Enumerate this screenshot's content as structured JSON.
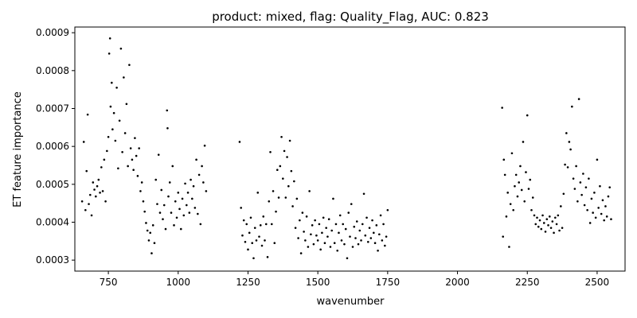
{
  "chart_data": {
    "type": "scatter",
    "title": "product: mixed, flag: Quality_Flag, AUC: 0.823",
    "xlabel": "wavenumber",
    "ylabel": "ET feature importance",
    "xlim": [
      630,
      2600
    ],
    "ylim": [
      0.000271,
      0.000915
    ],
    "xticks": [
      {
        "value": 750,
        "label": "750"
      },
      {
        "value": 1000,
        "label": "1000"
      },
      {
        "value": 1250,
        "label": "1250"
      },
      {
        "value": 1500,
        "label": "1500"
      },
      {
        "value": 1750,
        "label": "1750"
      },
      {
        "value": 2000,
        "label": "2000"
      },
      {
        "value": 2250,
        "label": "2250"
      },
      {
        "value": 2500,
        "label": "2500"
      }
    ],
    "yticks": [
      {
        "value": 0.0003,
        "label": "0.0003"
      },
      {
        "value": 0.0004,
        "label": "0.0004"
      },
      {
        "value": 0.0005,
        "label": "0.0005"
      },
      {
        "value": 0.0006,
        "label": "0.0006"
      },
      {
        "value": 0.0007,
        "label": "0.0007"
      },
      {
        "value": 0.0008,
        "label": "0.0008"
      },
      {
        "value": 0.0009,
        "label": "0.0009"
      }
    ],
    "grid": false,
    "marker_color": "#000000",
    "series": [
      {
        "points": [
          [
            656,
            0.000455
          ],
          [
            662,
            0.000612
          ],
          [
            668,
            0.000432
          ],
          [
            672,
            0.000535
          ],
          [
            676,
            0.000684
          ],
          [
            680,
            0.000448
          ],
          [
            685,
            0.000472
          ],
          [
            690,
            0.000418
          ],
          [
            695,
            0.000505
          ],
          [
            700,
            0.000486
          ],
          [
            705,
            0.000468
          ],
          [
            710,
            0.000495
          ],
          [
            715,
            0.000512
          ],
          [
            720,
            0.000478
          ],
          [
            725,
            0.000545
          ],
          [
            730,
            0.000482
          ],
          [
            735,
            0.000565
          ],
          [
            740,
            0.000455
          ],
          [
            745,
            0.000588
          ],
          [
            750,
            0.000625
          ],
          [
            753,
            0.000845
          ],
          [
            756,
            0.000885
          ],
          [
            758,
            0.000705
          ],
          [
            762,
            0.000768
          ],
          [
            765,
            0.000645
          ],
          [
            770,
            0.000688
          ],
          [
            775,
            0.000615
          ],
          [
            780,
            0.000755
          ],
          [
            785,
            0.000542
          ],
          [
            790,
            0.000668
          ],
          [
            795,
            0.000858
          ],
          [
            800,
            0.000585
          ],
          [
            805,
            0.000782
          ],
          [
            810,
            0.000635
          ],
          [
            815,
            0.000712
          ],
          [
            820,
            0.000548
          ],
          [
            825,
            0.000815
          ],
          [
            830,
            0.000595
          ],
          [
            835,
            0.000565
          ],
          [
            840,
            0.000538
          ],
          [
            845,
            0.000622
          ],
          [
            850,
            0.000575
          ],
          [
            855,
            0.000522
          ],
          [
            860,
            0.000595
          ],
          [
            865,
            0.000482
          ],
          [
            870,
            0.000505
          ],
          [
            875,
            0.000455
          ],
          [
            880,
            0.000428
          ],
          [
            885,
            0.000398
          ],
          [
            890,
            0.000378
          ],
          [
            895,
            0.000352
          ],
          [
            900,
            0.000372
          ],
          [
            905,
            0.000318
          ],
          [
            910,
            0.000392
          ],
          [
            915,
            0.000345
          ],
          [
            920,
            0.000512
          ],
          [
            925,
            0.000448
          ],
          [
            930,
            0.000578
          ],
          [
            935,
            0.000425
          ],
          [
            940,
            0.000485
          ],
          [
            945,
            0.000408
          ],
          [
            950,
            0.000445
          ],
          [
            955,
            0.000382
          ],
          [
            960,
            0.000695
          ],
          [
            962,
            0.000648
          ],
          [
            965,
            0.000468
          ],
          [
            970,
            0.000505
          ],
          [
            975,
            0.000425
          ],
          [
            980,
            0.000548
          ],
          [
            985,
            0.000392
          ],
          [
            990,
            0.000455
          ],
          [
            995,
            0.000412
          ],
          [
            1000,
            0.000478
          ],
          [
            1005,
            0.000435
          ],
          [
            1010,
            0.000382
          ],
          [
            1015,
            0.000462
          ],
          [
            1020,
            0.000418
          ],
          [
            1025,
            0.000502
          ],
          [
            1030,
            0.000445
          ],
          [
            1035,
            0.000478
          ],
          [
            1040,
            0.000425
          ],
          [
            1045,
            0.000512
          ],
          [
            1050,
            0.000462
          ],
          [
            1055,
            0.000495
          ],
          [
            1060,
            0.000438
          ],
          [
            1065,
            0.000565
          ],
          [
            1070,
            0.000422
          ],
          [
            1075,
            0.000525
          ],
          [
            1080,
            0.000395
          ],
          [
            1085,
            0.000548
          ],
          [
            1090,
            0.000505
          ],
          [
            1095,
            0.000602
          ],
          [
            1100,
            0.000482
          ],
          [
            1220,
            0.000612
          ],
          [
            1225,
            0.000438
          ],
          [
            1230,
            0.000365
          ],
          [
            1235,
            0.000405
          ],
          [
            1240,
            0.000348
          ],
          [
            1245,
            0.000395
          ],
          [
            1250,
            0.000328
          ],
          [
            1255,
            0.000372
          ],
          [
            1260,
            0.000412
          ],
          [
            1265,
            0.000345
          ],
          [
            1270,
            0.000305
          ],
          [
            1275,
            0.000385
          ],
          [
            1280,
            0.000352
          ],
          [
            1285,
            0.000478
          ],
          [
            1290,
            0.000362
          ],
          [
            1295,
            0.000392
          ],
          [
            1300,
            0.000338
          ],
          [
            1305,
            0.000415
          ],
          [
            1310,
            0.000352
          ],
          [
            1315,
            0.000395
          ],
          [
            1320,
            0.000308
          ],
          [
            1325,
            0.000455
          ],
          [
            1330,
            0.000585
          ],
          [
            1335,
            0.000395
          ],
          [
            1340,
            0.000482
          ],
          [
            1345,
            0.000345
          ],
          [
            1350,
            0.000428
          ],
          [
            1355,
            0.000538
          ],
          [
            1360,
            0.000465
          ],
          [
            1365,
            0.000548
          ],
          [
            1370,
            0.000625
          ],
          [
            1375,
            0.000515
          ],
          [
            1380,
            0.000588
          ],
          [
            1385,
            0.000465
          ],
          [
            1390,
            0.000572
          ],
          [
            1395,
            0.000495
          ],
          [
            1400,
            0.000615
          ],
          [
            1405,
            0.000535
          ],
          [
            1410,
            0.000442
          ],
          [
            1415,
            0.000508
          ],
          [
            1420,
            0.000385
          ],
          [
            1425,
            0.000462
          ],
          [
            1430,
            0.000358
          ],
          [
            1435,
            0.000405
          ],
          [
            1440,
            0.000318
          ],
          [
            1445,
            0.000425
          ],
          [
            1450,
            0.000375
          ],
          [
            1455,
            0.000352
          ],
          [
            1460,
            0.000415
          ],
          [
            1465,
            0.000335
          ],
          [
            1470,
            0.000482
          ],
          [
            1475,
            0.000368
          ],
          [
            1480,
            0.000392
          ],
          [
            1485,
            0.000342
          ],
          [
            1490,
            0.000405
          ],
          [
            1495,
            0.000365
          ],
          [
            1500,
            0.000352
          ],
          [
            1505,
            0.000395
          ],
          [
            1510,
            0.000328
          ],
          [
            1515,
            0.000372
          ],
          [
            1520,
            0.000412
          ],
          [
            1525,
            0.000345
          ],
          [
            1530,
            0.000385
          ],
          [
            1535,
            0.000362
          ],
          [
            1540,
            0.000408
          ],
          [
            1545,
            0.000335
          ],
          [
            1550,
            0.000378
          ],
          [
            1555,
            0.000462
          ],
          [
            1560,
            0.000345
          ],
          [
            1565,
            0.000395
          ],
          [
            1570,
            0.000325
          ],
          [
            1575,
            0.000372
          ],
          [
            1580,
            0.000418
          ],
          [
            1585,
            0.000352
          ],
          [
            1590,
            0.000395
          ],
          [
            1595,
            0.000342
          ],
          [
            1600,
            0.000382
          ],
          [
            1605,
            0.000305
          ],
          [
            1610,
            0.000425
          ],
          [
            1615,
            0.000362
          ],
          [
            1620,
            0.000448
          ],
          [
            1625,
            0.000335
          ],
          [
            1630,
            0.000388
          ],
          [
            1635,
            0.000358
          ],
          [
            1640,
            0.000402
          ],
          [
            1645,
            0.000342
          ],
          [
            1650,
            0.000378
          ],
          [
            1655,
            0.000352
          ],
          [
            1660,
            0.000395
          ],
          [
            1665,
            0.000475
          ],
          [
            1670,
            0.000365
          ],
          [
            1675,
            0.000412
          ],
          [
            1680,
            0.000348
          ],
          [
            1685,
            0.000385
          ],
          [
            1690,
            0.000358
          ],
          [
            1695,
            0.000405
          ],
          [
            1700,
            0.000372
          ],
          [
            1705,
            0.000345
          ],
          [
            1710,
            0.000392
          ],
          [
            1715,
            0.000325
          ],
          [
            1720,
            0.000368
          ],
          [
            1725,
            0.000418
          ],
          [
            1730,
            0.000352
          ],
          [
            1735,
            0.000395
          ],
          [
            1740,
            0.000338
          ],
          [
            1745,
            0.000362
          ],
          [
            1750,
            0.000432
          ],
          [
            2160,
            0.000702
          ],
          [
            2163,
            0.000362
          ],
          [
            2166,
            0.000565
          ],
          [
            2170,
            0.000525
          ],
          [
            2175,
            0.000415
          ],
          [
            2180,
            0.000478
          ],
          [
            2185,
            0.000335
          ],
          [
            2190,
            0.000448
          ],
          [
            2195,
            0.000582
          ],
          [
            2200,
            0.000432
          ],
          [
            2205,
            0.000495
          ],
          [
            2210,
            0.000525
          ],
          [
            2215,
            0.000468
          ],
          [
            2220,
            0.000505
          ],
          [
            2225,
            0.000548
          ],
          [
            2230,
            0.000485
          ],
          [
            2235,
            0.000612
          ],
          [
            2240,
            0.000455
          ],
          [
            2245,
            0.000532
          ],
          [
            2250,
            0.000682
          ],
          [
            2255,
            0.000488
          ],
          [
            2260,
            0.000512
          ],
          [
            2265,
            0.000432
          ],
          [
            2270,
            0.000465
          ],
          [
            2275,
            0.000418
          ],
          [
            2280,
            0.000395
          ],
          [
            2285,
            0.000412
          ],
          [
            2290,
            0.000388
          ],
          [
            2295,
            0.000405
          ],
          [
            2300,
            0.000382
          ],
          [
            2305,
            0.000418
          ],
          [
            2310,
            0.000398
          ],
          [
            2315,
            0.000375
          ],
          [
            2320,
            0.000408
          ],
          [
            2325,
            0.000392
          ],
          [
            2330,
            0.000415
          ],
          [
            2335,
            0.000385
          ],
          [
            2340,
            0.000402
          ],
          [
            2345,
            0.000372
          ],
          [
            2350,
            0.000412
          ],
          [
            2355,
            0.000395
          ],
          [
            2360,
            0.000418
          ],
          [
            2365,
            0.000378
          ],
          [
            2370,
            0.000442
          ],
          [
            2375,
            0.000385
          ],
          [
            2380,
            0.000475
          ],
          [
            2385,
            0.000552
          ],
          [
            2390,
            0.000635
          ],
          [
            2395,
            0.000545
          ],
          [
            2400,
            0.000612
          ],
          [
            2405,
            0.000592
          ],
          [
            2410,
            0.000705
          ],
          [
            2415,
            0.000515
          ],
          [
            2420,
            0.000488
          ],
          [
            2425,
            0.000548
          ],
          [
            2430,
            0.000455
          ],
          [
            2435,
            0.000725
          ],
          [
            2440,
            0.000505
          ],
          [
            2445,
            0.000472
          ],
          [
            2450,
            0.000528
          ],
          [
            2455,
            0.000445
          ],
          [
            2460,
            0.000492
          ],
          [
            2465,
            0.000432
          ],
          [
            2470,
            0.000515
          ],
          [
            2475,
            0.000398
          ],
          [
            2480,
            0.000462
          ],
          [
            2485,
            0.000425
          ],
          [
            2490,
            0.000478
          ],
          [
            2495,
            0.000412
          ],
          [
            2500,
            0.000565
          ],
          [
            2505,
            0.000438
          ],
          [
            2510,
            0.000495
          ],
          [
            2515,
            0.000422
          ],
          [
            2520,
            0.000458
          ],
          [
            2525,
            0.000405
          ],
          [
            2530,
            0.000442
          ],
          [
            2535,
            0.000415
          ],
          [
            2540,
            0.000468
          ],
          [
            2545,
            0.000492
          ],
          [
            2550,
            0.000408
          ]
        ]
      }
    ]
  }
}
